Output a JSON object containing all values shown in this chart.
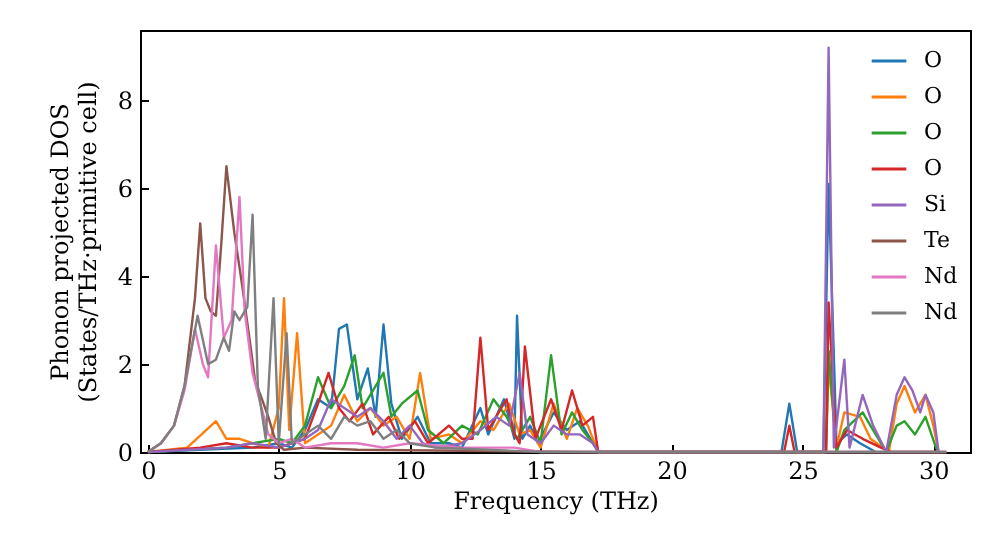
{
  "chart_data": {
    "type": "line",
    "xlabel": "Frequency (THz)",
    "ylabel": "Phonon projected DOS\n(States/THz·primitive cell)",
    "xlim": [
      -0.3,
      31.4
    ],
    "ylim": [
      0,
      9.6
    ],
    "xticks": [
      0,
      5,
      10,
      15,
      20,
      25,
      30
    ],
    "yticks": [
      0,
      2,
      4,
      6,
      8
    ],
    "grid": false,
    "legend": "top right",
    "marker": "none",
    "line_style": "solid",
    "series": [
      {
        "name": "O",
        "color": "#1f77b4",
        "x": [
          0,
          2,
          4,
          5,
          5.5,
          6,
          6.5,
          7,
          7.3,
          7.6,
          8,
          8.4,
          8.7,
          9,
          9.3,
          9.7,
          10.3,
          10.8,
          11.5,
          12,
          12.7,
          13,
          13.6,
          14,
          14.1,
          14.3,
          14.6,
          14.9,
          15.5,
          16,
          16.5,
          17,
          17.2,
          24.2,
          24.5,
          24.8,
          25.8,
          26,
          26.3,
          26.7,
          27.2,
          27.8
        ],
        "values": [
          0,
          0.05,
          0.1,
          0.2,
          0.1,
          0.5,
          1.2,
          1,
          2.8,
          2.9,
          1.2,
          1.9,
          0.8,
          2.9,
          1.1,
          0.3,
          0.8,
          0.2,
          0.2,
          0.1,
          1,
          0.4,
          1.2,
          0.3,
          3.1,
          0.3,
          0.6,
          0.2,
          0.9,
          0.5,
          0.7,
          0.2,
          0,
          0,
          1.1,
          0,
          0,
          6.1,
          0.2,
          0.4,
          0.2,
          0
        ]
      },
      {
        "name": "O",
        "color": "#ff7f0e",
        "x": [
          0,
          1.5,
          2.6,
          3,
          3.5,
          4,
          4.6,
          5,
          5.2,
          5.4,
          5.7,
          6,
          6.5,
          7,
          7.5,
          8,
          8.5,
          9,
          9.5,
          10,
          10.4,
          10.8,
          11.5,
          12,
          12.7,
          13.2,
          13.8,
          14.2,
          14.6,
          15,
          15.5,
          16,
          16.4,
          16.8,
          17.2,
          25.9,
          26,
          26.3,
          26.6,
          27.2,
          27.6,
          28.3,
          28.6,
          28.9,
          29.3,
          29.7,
          30,
          30.2
        ],
        "values": [
          0,
          0.1,
          0.7,
          0.3,
          0.3,
          0.2,
          0.1,
          1,
          3.5,
          0.5,
          2.7,
          0.2,
          0.4,
          0.6,
          1.3,
          0.7,
          1,
          0.6,
          0.8,
          0.3,
          1.8,
          0.3,
          0.4,
          0.2,
          0.7,
          0.5,
          1.1,
          0.4,
          0.5,
          0.1,
          1.1,
          0.3,
          1,
          0.6,
          0,
          0,
          2,
          0.1,
          0.9,
          0.8,
          0.3,
          0,
          1.1,
          1.5,
          0.9,
          1.3,
          0.6,
          0
        ]
      },
      {
        "name": "O",
        "color": "#2ca02c",
        "x": [
          0,
          3,
          5,
          5.5,
          6,
          6.5,
          7,
          7.5,
          7.9,
          8.2,
          8.6,
          9,
          9.3,
          9.7,
          10.3,
          10.7,
          11.3,
          12,
          12.6,
          13.2,
          13.7,
          14.1,
          14.6,
          15,
          15.4,
          15.8,
          16.2,
          16.6,
          17,
          17.2,
          25.9,
          26,
          26.3,
          26.6,
          27.3,
          27.7,
          28.2,
          28.6,
          28.9,
          29.3,
          29.7,
          30.1,
          30.2
        ],
        "values": [
          0,
          0.1,
          0.3,
          0.2,
          0.6,
          1.7,
          1,
          1.5,
          2.2,
          1,
          1.4,
          1.8,
          0.8,
          1.1,
          1.4,
          0.5,
          0.2,
          0.6,
          0.4,
          1.2,
          0.8,
          0.3,
          0.8,
          0.2,
          2.2,
          0.4,
          0.9,
          0.5,
          0.2,
          0,
          0,
          2.3,
          0,
          0.5,
          0.9,
          0.5,
          0,
          0.6,
          0.7,
          0.4,
          0.8,
          0.1,
          0
        ]
      },
      {
        "name": "O",
        "color": "#d62728",
        "x": [
          0,
          2,
          3,
          4,
          5,
          6,
          6.5,
          6.9,
          7.3,
          7.7,
          8.2,
          8.6,
          9.2,
          9.6,
          10.2,
          10.7,
          11.5,
          12,
          12.4,
          12.7,
          13,
          13.4,
          13.7,
          14,
          14.2,
          14.4,
          14.8,
          15.4,
          15.8,
          16.2,
          16.6,
          17,
          17.2,
          24.3,
          24.5,
          24.7,
          25.9,
          26,
          26.3,
          26.7,
          27.3,
          28,
          28.4,
          30.2
        ],
        "values": [
          0,
          0.1,
          0.2,
          0.1,
          0.1,
          0.3,
          1.1,
          1.8,
          1,
          0.7,
          1.1,
          0.4,
          0.8,
          0.3,
          0.7,
          0.2,
          0.6,
          0.3,
          0.3,
          2.6,
          0.5,
          0.9,
          1.2,
          0.4,
          0.2,
          2.4,
          0.3,
          1.2,
          0.5,
          1.4,
          0.6,
          0.8,
          0,
          0,
          0.6,
          0,
          0,
          3.4,
          0.1,
          0.5,
          0.3,
          0.1,
          0,
          0
        ]
      },
      {
        "name": "Si",
        "color": "#9467bd",
        "x": [
          0,
          3,
          4,
          5,
          6,
          6.5,
          7,
          7.5,
          8,
          8.5,
          9,
          9.5,
          10,
          10.5,
          11,
          12,
          12.7,
          13.3,
          13.8,
          14.2,
          14.5,
          15,
          15.5,
          16,
          16.5,
          17,
          17.2,
          25.8,
          26,
          26.2,
          26.6,
          26.8,
          27.3,
          27.7,
          28.2,
          28.6,
          28.9,
          29.2,
          29.5,
          29.7,
          30,
          30.2
        ],
        "values": [
          0,
          0.1,
          0.2,
          0.1,
          0.3,
          0.5,
          1.2,
          1,
          0.8,
          1,
          0.7,
          0.3,
          0.6,
          0.2,
          0.1,
          0.2,
          0.5,
          0.8,
          0.6,
          1.8,
          0.4,
          0.2,
          0.6,
          0.4,
          0.4,
          0.2,
          0,
          0,
          9.2,
          0.1,
          2.1,
          0.1,
          1.3,
          0.6,
          0,
          1.3,
          1.7,
          1.4,
          0.9,
          1.3,
          0.9,
          0
        ]
      },
      {
        "name": "Te",
        "color": "#8c564b",
        "x": [
          0,
          0.5,
          1,
          1.4,
          1.8,
          2,
          2.2,
          2.4,
          2.6,
          2.8,
          3,
          3.3,
          3.5,
          3.6,
          3.9,
          4.1,
          4.3,
          4.6,
          4.9,
          5.2,
          6,
          8,
          17,
          30.5
        ],
        "values": [
          0,
          0.2,
          0.6,
          1.5,
          3.5,
          5.2,
          3.5,
          3.2,
          3.1,
          4.7,
          6.5,
          5,
          4.2,
          3.8,
          2.5,
          1.6,
          1.3,
          0.8,
          0.2,
          0.05,
          0.1,
          0.05,
          0,
          0
        ]
      },
      {
        "name": "Nd",
        "color": "#e377c2",
        "x": [
          0,
          0.5,
          1,
          1.4,
          1.8,
          2.1,
          2.3,
          2.6,
          2.9,
          3.2,
          3.5,
          3.7,
          4,
          4.3,
          4.6,
          5,
          5.5,
          6,
          7,
          8,
          9,
          10,
          12,
          14,
          15,
          30.5
        ],
        "values": [
          0,
          0.2,
          0.6,
          1.4,
          2.8,
          2,
          1.7,
          4.7,
          2.6,
          3,
          5.8,
          3.2,
          1.8,
          1.1,
          0.4,
          0.2,
          0.3,
          0.1,
          0.2,
          0.2,
          0.1,
          0.2,
          0.1,
          0.1,
          0,
          0
        ]
      },
      {
        "name": "Nd",
        "color": "#7f7f7f",
        "x": [
          0,
          0.5,
          1,
          1.4,
          1.9,
          2.3,
          2.6,
          2.9,
          3.1,
          3.3,
          3.5,
          3.8,
          4,
          4.2,
          4.5,
          4.8,
          5,
          5.3,
          5.5,
          6,
          6.5,
          7,
          7.5,
          8,
          8.5,
          9,
          9.5,
          10,
          11,
          13,
          15,
          30.5
        ],
        "values": [
          0,
          0.2,
          0.6,
          1.5,
          3.1,
          2,
          2.1,
          2.6,
          2.3,
          3.2,
          3,
          3.3,
          5.4,
          1.5,
          0.3,
          3.5,
          0.2,
          2.7,
          0.2,
          0.4,
          0.6,
          0.3,
          0.8,
          0.6,
          0.7,
          0.3,
          0.5,
          0.2,
          0.1,
          0.05,
          0,
          0
        ]
      }
    ]
  }
}
